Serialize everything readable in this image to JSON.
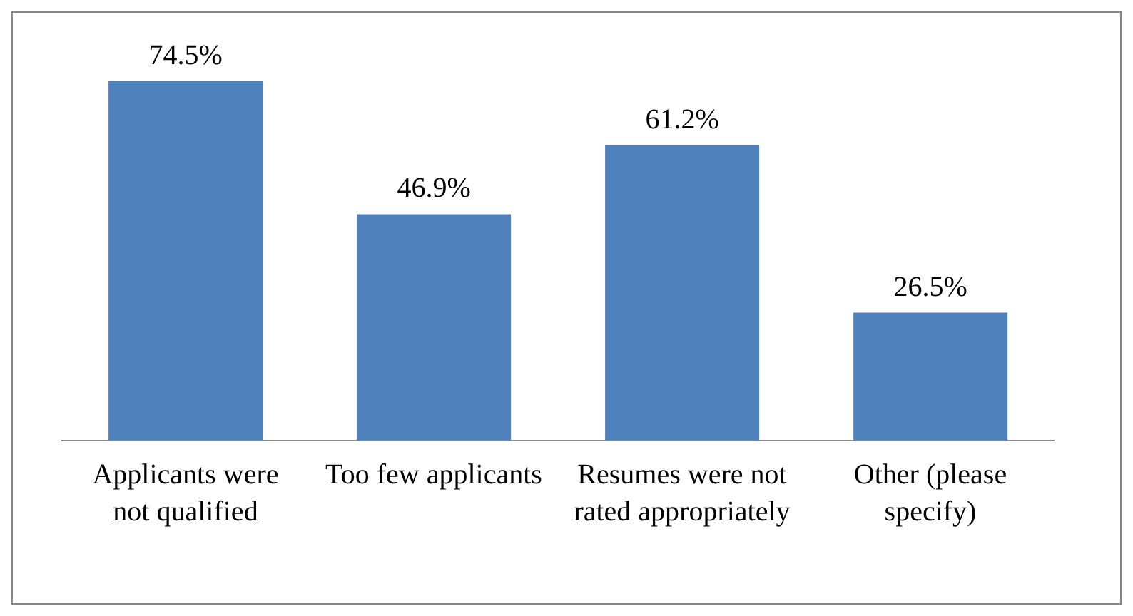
{
  "chart_data": {
    "type": "bar",
    "categories": [
      "Applicants were not qualified",
      "Too few applicants",
      "Resumes were not rated appropriately",
      "Other (please specify)"
    ],
    "values": [
      74.5,
      46.9,
      61.2,
      26.5
    ],
    "value_labels": [
      "74.5%",
      "46.9%",
      "61.2%",
      "26.5%"
    ],
    "color": "#4f81bd"
  }
}
